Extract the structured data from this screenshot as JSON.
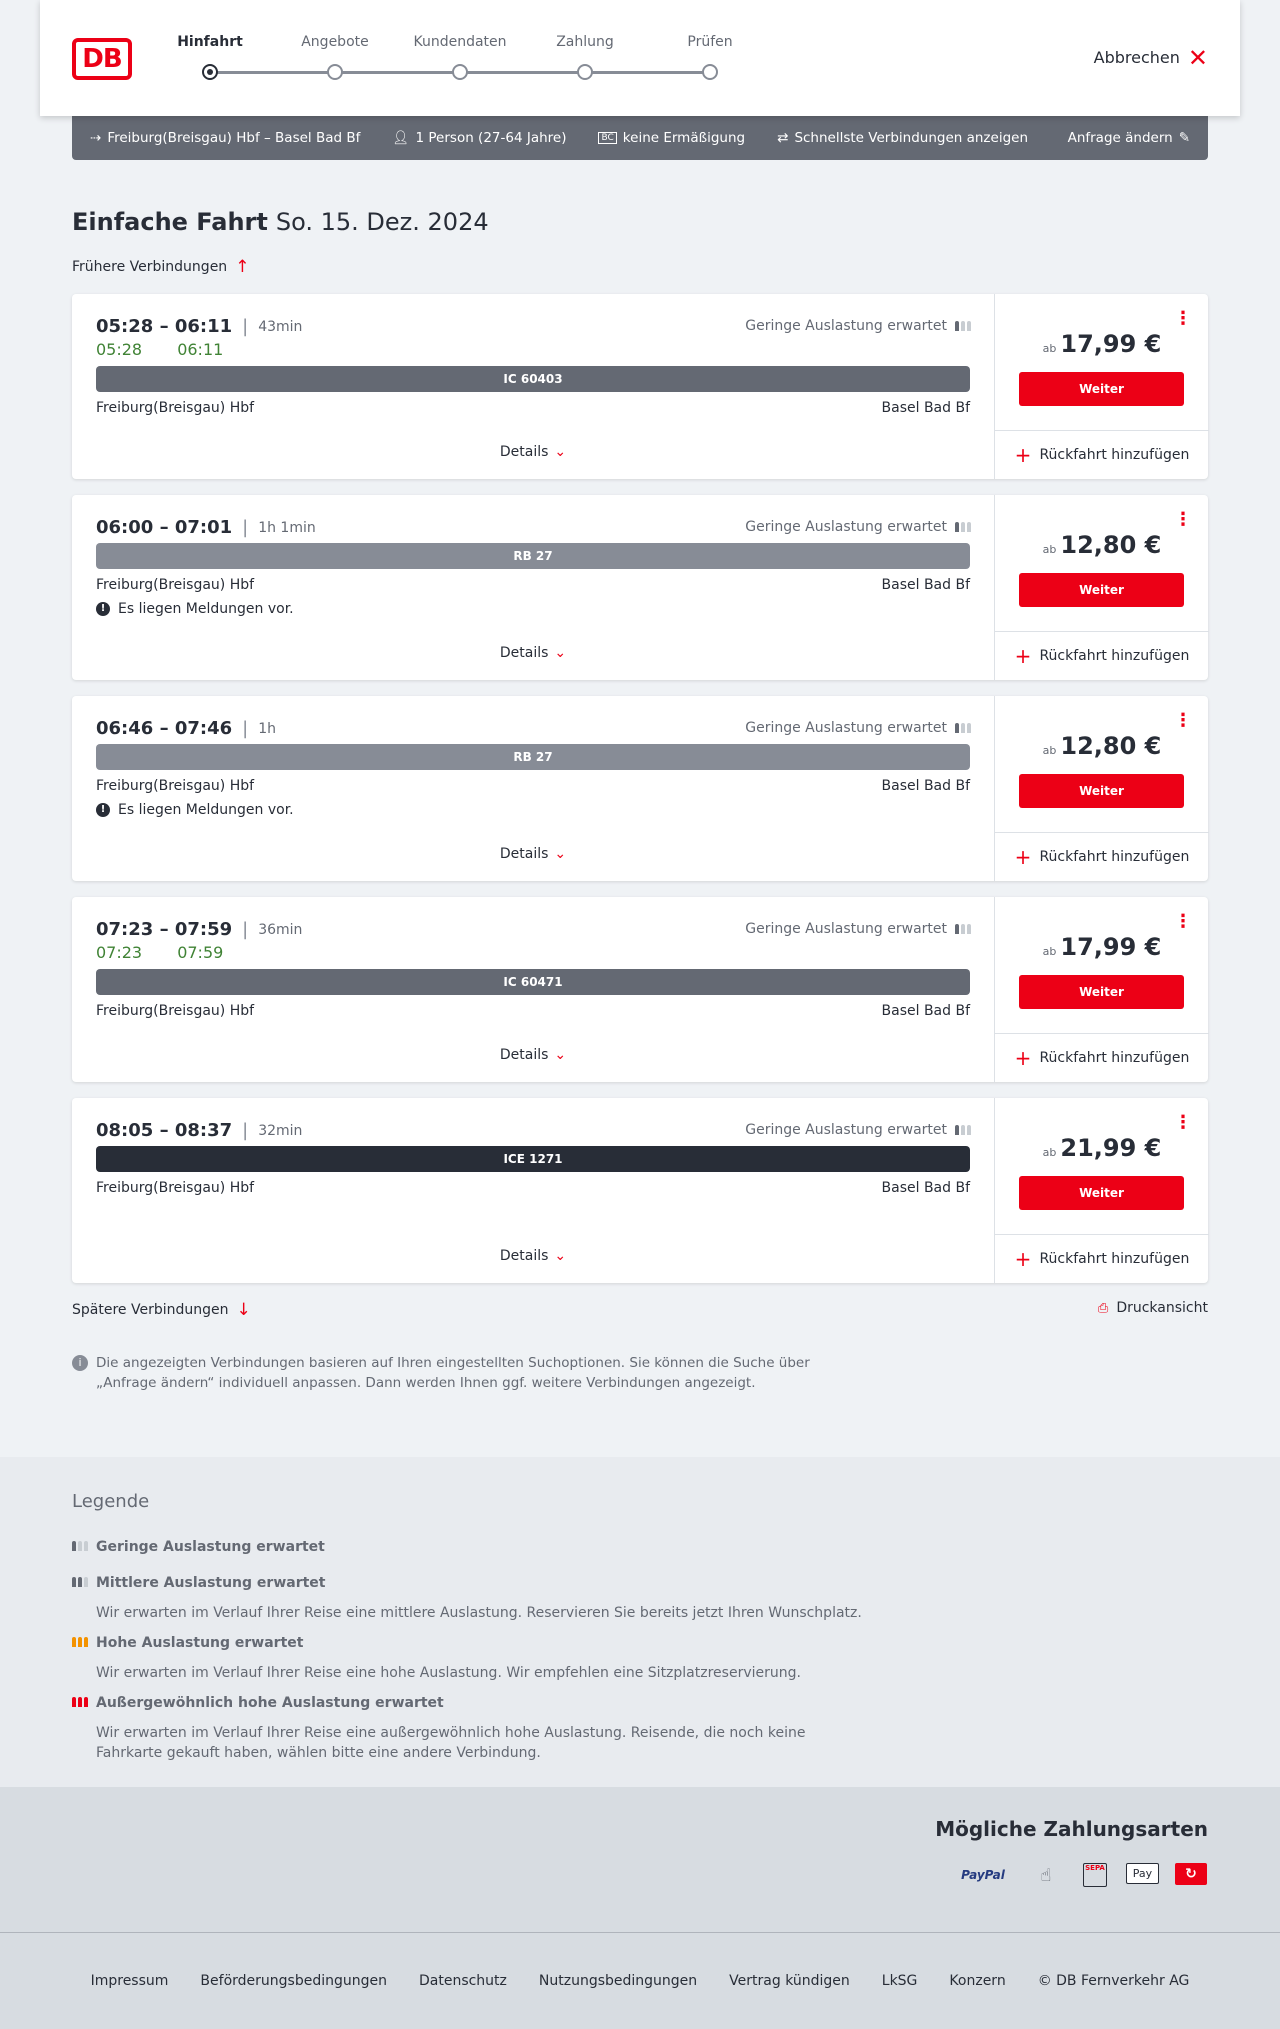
{
  "header": {
    "logo": "DB",
    "steps": [
      "Hinfahrt",
      "Angebote",
      "Kundendaten",
      "Zahlung",
      "Prüfen"
    ],
    "active_step": 0,
    "cancel": "Abbrechen"
  },
  "search": {
    "route": "Freiburg(Breisgau) Hbf – Basel Bad Bf",
    "persons": "1 Person (27-64 Jahre)",
    "discount": "keine Ermäßigung",
    "fastest": "Schnellste Verbindungen anzeigen",
    "edit": "Anfrage ändern"
  },
  "title": {
    "type": "Einfache Fahrt",
    "date": "So. 15. Dez. 2024"
  },
  "earlier": "Frühere Verbindungen",
  "later": "Spätere Verbindungen",
  "print": "Druckansicht",
  "colors": {
    "accent": "#ec0016",
    "realtime": "#408335"
  },
  "connections": [
    {
      "times": "05:28 – 06:11",
      "duration": "43min",
      "realtime": "05:28 06:11",
      "occupancy": "Geringe Auslastung erwartet",
      "train": "IC 60403",
      "train_color": "#646973",
      "from": "Freiburg(Breisgau) Hbf",
      "to": "Basel Bad Bf",
      "message": "",
      "details": "Details",
      "price_prefix": "ab",
      "price": "17,99 €",
      "button": "Weiter",
      "return": "Rückfahrt hinzufügen"
    },
    {
      "times": "06:00 – 07:01",
      "duration": "1h 1min",
      "realtime": "",
      "occupancy": "Geringe Auslastung erwartet",
      "train": "RB 27",
      "train_color": "#878c96",
      "from": "Freiburg(Breisgau) Hbf",
      "to": "Basel Bad Bf",
      "message": "Es liegen Meldungen vor.",
      "details": "Details",
      "price_prefix": "ab",
      "price": "12,80 €",
      "button": "Weiter",
      "return": "Rückfahrt hinzufügen"
    },
    {
      "times": "06:46 – 07:46",
      "duration": "1h",
      "realtime": "",
      "occupancy": "Geringe Auslastung erwartet",
      "train": "RB 27",
      "train_color": "#878c96",
      "from": "Freiburg(Breisgau) Hbf",
      "to": "Basel Bad Bf",
      "message": "Es liegen Meldungen vor.",
      "details": "Details",
      "price_prefix": "ab",
      "price": "12,80 €",
      "button": "Weiter",
      "return": "Rückfahrt hinzufügen"
    },
    {
      "times": "07:23 – 07:59",
      "duration": "36min",
      "realtime": "07:23 07:59",
      "occupancy": "Geringe Auslastung erwartet",
      "train": "IC 60471",
      "train_color": "#646973",
      "from": "Freiburg(Breisgau) Hbf",
      "to": "Basel Bad Bf",
      "message": "",
      "details": "Details",
      "price_prefix": "ab",
      "price": "17,99 €",
      "button": "Weiter",
      "return": "Rückfahrt hinzufügen"
    },
    {
      "times": "08:05 – 08:37",
      "duration": "32min",
      "realtime": "",
      "occupancy": "Geringe Auslastung erwartet",
      "train": "ICE 1271",
      "train_color": "#282d37",
      "from": "Freiburg(Breisgau) Hbf",
      "to": "Basel Bad Bf",
      "message": "",
      "details": "Details",
      "price_prefix": "ab",
      "price": "21,99 €",
      "button": "Weiter",
      "return": "Rückfahrt hinzufügen"
    }
  ],
  "info": "Die angezeigten Verbindungen basieren auf Ihren eingestellten Suchoptionen. Sie können die Suche über „Anfrage ändern“ individuell anpassen. Dann werden Ihnen ggf. weitere Verbindungen angezeigt.",
  "legend": {
    "title": "Legende",
    "items": [
      {
        "label": "Geringe Auslastung erwartet",
        "text": "",
        "color": "#646973"
      },
      {
        "label": "Mittlere Auslastung erwartet",
        "text": "Wir erwarten im Verlauf Ihrer Reise eine mittlere Auslastung. Reservieren Sie bereits jetzt Ihren Wunschplatz.",
        "color": "#646973"
      },
      {
        "label": "Hohe Auslastung erwartet",
        "text": "Wir erwarten im Verlauf Ihrer Reise eine hohe Auslastung. Wir empfehlen eine Sitzplatzreservierung.",
        "color": "#f39200"
      },
      {
        "label": "Außergewöhnlich hohe Auslastung erwartet",
        "text": "Wir erwarten im Verlauf Ihrer Reise eine außergewöhnlich hohe Auslastung. Reisende, die noch keine Fahrkarte gekauft haben, wählen bitte eine andere Verbindung.",
        "color": "#ec0016"
      }
    ]
  },
  "payment": {
    "title": "Mögliche Zahlungsarten",
    "methods": [
      "PayPal",
      "contactless-icon",
      "SEPA",
      "Pay",
      "ratepay-icon"
    ]
  },
  "footer": [
    "Impressum",
    "Beförderungsbedingungen",
    "Datenschutz",
    "Nutzungsbedingungen",
    "Vertrag kündigen",
    "LkSG",
    "Konzern",
    "© DB Fernverkehr AG"
  ]
}
